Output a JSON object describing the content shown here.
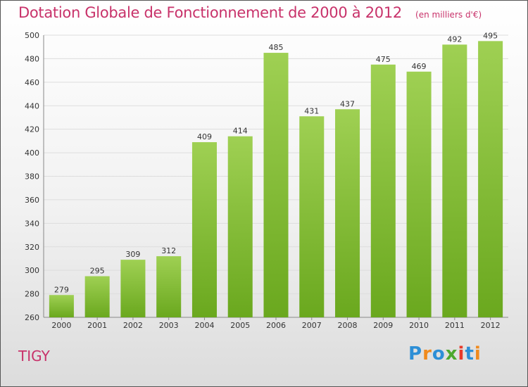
{
  "header": {
    "title": "Dotation Globale de Fonctionnement de 2000 à 2012",
    "subtitle": "(en milliers d'€)"
  },
  "footer": {
    "location": "TIGY",
    "logo_text": [
      "P",
      "r",
      "o",
      "x",
      "i",
      "t",
      "i"
    ]
  },
  "colors": {
    "bar_top": "#9fd053",
    "bar_bottom": "#6aa81e",
    "grid": "#dddddd",
    "title": "#c8326a"
  },
  "chart_data": {
    "type": "bar",
    "title": "Dotation Globale de Fonctionnement de 2000 à 2012",
    "subtitle": "(en milliers d'€)",
    "categories": [
      "2000",
      "2001",
      "2002",
      "2003",
      "2004",
      "2005",
      "2006",
      "2007",
      "2008",
      "2009",
      "2010",
      "2011",
      "2012"
    ],
    "values": [
      279,
      295,
      309,
      312,
      409,
      414,
      485,
      431,
      437,
      475,
      469,
      492,
      495
    ],
    "ylim": [
      260,
      500
    ],
    "yticks": [
      260,
      280,
      300,
      320,
      340,
      360,
      380,
      400,
      420,
      440,
      460,
      480,
      500
    ],
    "grid": true,
    "data_labels": true
  }
}
